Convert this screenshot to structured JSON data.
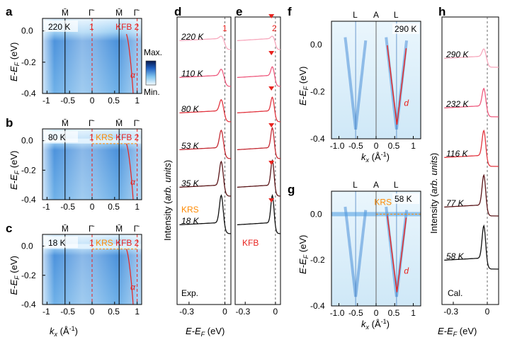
{
  "chart_data": [
    {
      "panel": "a",
      "type": "heatmap",
      "temperature": "220 K",
      "xlabel": "k_x (Å⁻¹)",
      "ylabel": "E-E_F (eV)",
      "xticks": [
        "-1",
        "-0.5",
        "0",
        "0.5",
        "1"
      ],
      "yticks": [
        "0.0",
        "-0.2",
        "-0.4"
      ],
      "xlim": [
        -1.1,
        1.1
      ],
      "ylim": [
        -0.4,
        0.08
      ],
      "top_labels": [
        "M̄",
        "Γ̄",
        "M̄",
        "Γ̄"
      ],
      "cut_labels": [
        "1",
        "2"
      ],
      "annotations": [
        "KFB",
        "α"
      ]
    },
    {
      "panel": "b",
      "type": "heatmap",
      "temperature": "80 K",
      "xlabel": "k_x (Å⁻¹)",
      "ylabel": "E-E_F (eV)",
      "xticks": [
        "-1",
        "-0.5",
        "0",
        "0.5",
        "1"
      ],
      "yticks": [
        "0.0",
        "-0.2",
        "-0.4"
      ],
      "xlim": [
        -1.1,
        1.1
      ],
      "ylim": [
        -0.4,
        0.08
      ],
      "top_labels": [
        "M̄",
        "Γ̄",
        "M̄",
        "Γ̄"
      ],
      "cut_labels": [
        "1",
        "2"
      ],
      "annotations": [
        "KRS",
        "KFB",
        "α"
      ]
    },
    {
      "panel": "c",
      "type": "heatmap",
      "temperature": "18 K",
      "xlabel": "k_x (Å⁻¹)",
      "ylabel": "E-E_F (eV)",
      "xticks": [
        "-1",
        "-0.5",
        "0",
        "0.5",
        "1"
      ],
      "yticks": [
        "0.0",
        "-0.2",
        "-0.4"
      ],
      "xlim": [
        -1.1,
        1.1
      ],
      "ylim": [
        -0.4,
        0.08
      ],
      "top_labels": [
        "M̄",
        "Γ̄",
        "M̄",
        "Γ̄"
      ],
      "cut_labels": [
        "1",
        "2"
      ],
      "annotations": [
        "KRS",
        "KFB",
        "α"
      ]
    },
    {
      "panel": "d",
      "type": "line",
      "title": "1",
      "xlabel": "E-E_F (eV)",
      "ylabel": "Intensity (arb. units)",
      "xticks": [
        "-0.3",
        "0"
      ],
      "xlim": [
        -0.4,
        0.05
      ],
      "series": [
        {
          "name": "220 K",
          "color": "#f7a8bd",
          "peak_height": 0.1
        },
        {
          "name": "110 K",
          "color": "#ee5a7e",
          "peak_height": 0.25
        },
        {
          "name": "80 K",
          "color": "#e2353f",
          "peak_height": 0.45
        },
        {
          "name": "53 K",
          "color": "#c42a33",
          "peak_height": 0.7
        },
        {
          "name": "35 K",
          "color": "#5a1518",
          "peak_height": 0.95
        },
        {
          "name": "18 K",
          "color": "#111111",
          "peak_height": 1.1
        }
      ],
      "annotations": [
        "KRS",
        "Exp."
      ]
    },
    {
      "panel": "e",
      "type": "line",
      "title": "2",
      "xlabel": "E-E_F (eV)",
      "xticks": [
        "-0.3",
        "0"
      ],
      "xlim": [
        -0.4,
        0.05
      ],
      "series": [
        {
          "name": "220 K",
          "color": "#f7a8bd",
          "peak_height": 0.1
        },
        {
          "name": "110 K",
          "color": "#ee5a7e",
          "peak_height": 0.35
        },
        {
          "name": "80 K",
          "color": "#e2353f",
          "peak_height": 0.55
        },
        {
          "name": "53 K",
          "color": "#c42a33",
          "peak_height": 0.8
        },
        {
          "name": "35 K",
          "color": "#5a1518",
          "peak_height": 1.0
        },
        {
          "name": "18 K",
          "color": "#111111",
          "peak_height": 1.1
        }
      ],
      "annotations": [
        "KFB"
      ]
    },
    {
      "panel": "f",
      "type": "heatmap",
      "temperature": "290 K",
      "xlabel": "k_x (Å⁻¹)",
      "ylabel": "E-E_F (eV)",
      "xticks": [
        "-1.0",
        "-0.5",
        "0",
        "0.5",
        "1"
      ],
      "yticks": [
        "0.0",
        "-0.2",
        "-0.4"
      ],
      "xlim": [
        -1.2,
        1.2
      ],
      "ylim": [
        -0.4,
        0.1
      ],
      "top_labels": [
        "L",
        "A",
        "L"
      ],
      "annotations": [
        "d"
      ]
    },
    {
      "panel": "g",
      "type": "heatmap",
      "temperature": "58 K",
      "xlabel": "k_x (Å⁻¹)",
      "ylabel": "E-E_F (eV)",
      "xticks": [
        "-1.0",
        "-0.5",
        "0",
        "0.5",
        "1"
      ],
      "yticks": [
        "0.0",
        "-0.2",
        "-0.4"
      ],
      "xlim": [
        -1.2,
        1.2
      ],
      "ylim": [
        -0.4,
        0.1
      ],
      "top_labels": [
        "L",
        "A",
        "L"
      ],
      "annotations": [
        "KRS",
        "d"
      ]
    },
    {
      "panel": "h",
      "type": "line",
      "xlabel": "E-E_F (eV)",
      "ylabel": "Intensity (arb. units)",
      "xticks": [
        "-0.3",
        "0"
      ],
      "xlim": [
        -0.4,
        0.1
      ],
      "series": [
        {
          "name": "290 K",
          "color": "#f7a8bd",
          "peak_height": 0.3
        },
        {
          "name": "232 K",
          "color": "#ee5a7e",
          "peak_height": 0.7
        },
        {
          "name": "116 K",
          "color": "#e2353f",
          "peak_height": 1.0
        },
        {
          "name": "77 K",
          "color": "#5a1518",
          "peak_height": 1.2
        },
        {
          "name": "58 K",
          "color": "#111111",
          "peak_height": 1.3
        }
      ],
      "annotations": [
        "Cal."
      ]
    }
  ],
  "colorbar": {
    "max_label": "Max.",
    "min_label": "Min."
  },
  "labels": {
    "a": "a",
    "b": "b",
    "c": "c",
    "d": "d",
    "e": "e",
    "f": "f",
    "g": "g",
    "h": "h",
    "Mbar": "M̄",
    "Gbar": "Γ̄",
    "L": "L",
    "A": "A",
    "cut1": "1",
    "cut2": "2",
    "KFB": "KFB",
    "KRS": "KRS",
    "alpha": "α",
    "dband": "d",
    "T220": "220 K",
    "T80": "80 K",
    "T18": "18 K",
    "T290": "290 K",
    "T58": "58 K",
    "T110": "110 K",
    "T53": "53 K",
    "T35": "35 K",
    "T232": "232 K",
    "T116": "116 K",
    "T77": "77 K",
    "Exp": "Exp.",
    "Cal": "Cal.",
    "ylab_E_pre": "E-E",
    "ylab_E_sub": "F",
    "ylab_E_post": " (eV)",
    "kx_pre": "k",
    "kx_sub": "x",
    "kx_post": " (Å",
    "kx_sup": "-1",
    "kx_close": ")",
    "int_pre": "Intensity (",
    "int_it": "arb. units",
    "int_post": ")",
    "t_m1": "-1",
    "t_m05": "-0.5",
    "t_0": "0",
    "t_05": "0.5",
    "t_1": "1",
    "t_m10": "-1.0",
    "t_00": "0.0",
    "t_m02": "-0.2",
    "t_m04": "-0.4",
    "t_m03": "-0.3"
  }
}
